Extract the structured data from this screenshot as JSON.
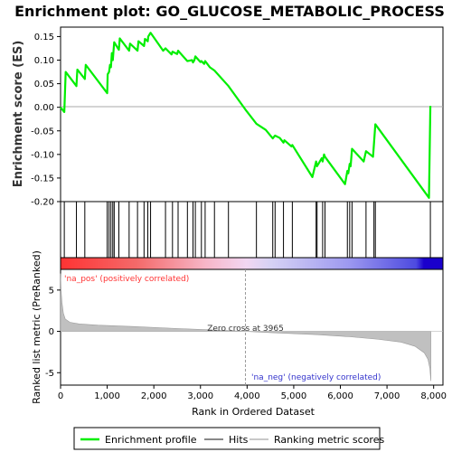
{
  "chart_data": {
    "type": "line",
    "title": "Enrichment plot: GO_GLUCOSE_METABOLIC_PROCESS",
    "es_axis": {
      "label": "Enrichment score (ES)",
      "ylim": [
        -0.2,
        0.17
      ],
      "ticks": [
        0.15,
        0.1,
        0.05,
        0.0,
        -0.05,
        -0.1,
        -0.15,
        -0.2
      ],
      "tick_labels": [
        "0.15",
        "0.10",
        "0.05",
        "0.00",
        "-0.05",
        "-0.10",
        "-0.15",
        "-0.20"
      ]
    },
    "x_axis": {
      "label": "Rank in Ordered Dataset",
      "xlim": [
        0,
        8200
      ],
      "ticks": [
        0,
        1000,
        2000,
        3000,
        4000,
        5000,
        6000,
        7000,
        8000
      ],
      "tick_labels": [
        "0",
        "1,000",
        "2,000",
        "3,000",
        "4,000",
        "5,000",
        "6,000",
        "7,000",
        "8,000"
      ]
    },
    "enrichment_profile": {
      "name": "Enrichment profile",
      "color": "#00ee00",
      "x": [
        0,
        80,
        110,
        340,
        360,
        520,
        540,
        1000,
        1010,
        1040,
        1060,
        1080,
        1100,
        1120,
        1150,
        1250,
        1270,
        1470,
        1490,
        1650,
        1670,
        1790,
        1810,
        1870,
        1880,
        1930,
        2200,
        2250,
        2380,
        2400,
        2500,
        2520,
        2700,
        2720,
        2820,
        2840,
        2870,
        2890,
        3000,
        3020,
        3080,
        3100,
        3200,
        3300,
        3600,
        3965,
        4200,
        4400,
        4550,
        4600,
        4700,
        4780,
        4800,
        4950,
        4970,
        5400,
        5480,
        5500,
        5600,
        5620,
        5650,
        5670,
        6100,
        6150,
        6170,
        6200,
        6220,
        6250,
        6500,
        6550,
        6700,
        6720,
        6750,
        7900,
        7930
      ],
      "values": [
        0.0,
        -0.01,
        0.075,
        0.045,
        0.08,
        0.06,
        0.09,
        0.03,
        0.07,
        0.075,
        0.09,
        0.085,
        0.115,
        0.1,
        0.138,
        0.122,
        0.146,
        0.12,
        0.135,
        0.12,
        0.14,
        0.13,
        0.145,
        0.14,
        0.15,
        0.158,
        0.12,
        0.125,
        0.112,
        0.118,
        0.113,
        0.12,
        0.1,
        0.098,
        0.1,
        0.095,
        0.1,
        0.108,
        0.096,
        0.098,
        0.092,
        0.098,
        0.085,
        0.078,
        0.045,
        -0.005,
        -0.035,
        -0.048,
        -0.066,
        -0.06,
        -0.065,
        -0.075,
        -0.07,
        -0.083,
        -0.08,
        -0.148,
        -0.115,
        -0.125,
        -0.108,
        -0.115,
        -0.1,
        -0.105,
        -0.163,
        -0.135,
        -0.14,
        -0.12,
        -0.125,
        -0.088,
        -0.115,
        -0.093,
        -0.105,
        -0.078,
        -0.036,
        -0.192,
        0.003
      ]
    },
    "hits": {
      "name": "Hits",
      "x": [
        80,
        340,
        520,
        1000,
        1040,
        1080,
        1120,
        1150,
        1250,
        1470,
        1650,
        1790,
        1870,
        1930,
        2250,
        2400,
        2520,
        2720,
        2840,
        2890,
        3020,
        3100,
        3300,
        3600,
        4200,
        4550,
        4600,
        4780,
        4970,
        5480,
        5500,
        5620,
        5670,
        6150,
        6200,
        6250,
        6550,
        6720,
        6750,
        7930
      ]
    },
    "ranking_metric": {
      "name": "Ranking metric scores",
      "label": "Ranked list metric (PreRanked)",
      "ylim": [
        -6.5,
        7.5
      ],
      "ticks": [
        5,
        0,
        -5
      ],
      "tick_labels": [
        "5",
        "0",
        "-5"
      ],
      "x": [
        0,
        10,
        30,
        60,
        100,
        200,
        400,
        800,
        1500,
        2500,
        3500,
        3965,
        4500,
        5500,
        6200,
        6800,
        7300,
        7600,
        7800,
        7880,
        7920,
        7940
      ],
      "values": [
        7.0,
        5.0,
        3.5,
        2.2,
        1.5,
        1.1,
        0.9,
        0.75,
        0.6,
        0.35,
        0.12,
        0.0,
        -0.15,
        -0.4,
        -0.65,
        -0.95,
        -1.3,
        -1.8,
        -2.6,
        -3.4,
        -4.5,
        -6.0
      ],
      "zero_cross_label": "Zero cross at 3965",
      "zero_cross_x": 3965,
      "pos_label": "'na_pos' (positively correlated)",
      "neg_label": "'na_neg' (negatively correlated)",
      "pos_color": "#ff3333",
      "neg_color": "#3333cc"
    },
    "legend": {
      "placement": "bottom",
      "entries": [
        {
          "label": "Enrichment profile",
          "color": "#00ee00"
        },
        {
          "label": "Hits",
          "color": "#888888"
        },
        {
          "label": "Ranking metric scores",
          "color": "#c8c8c8"
        }
      ]
    },
    "grid": false
  }
}
